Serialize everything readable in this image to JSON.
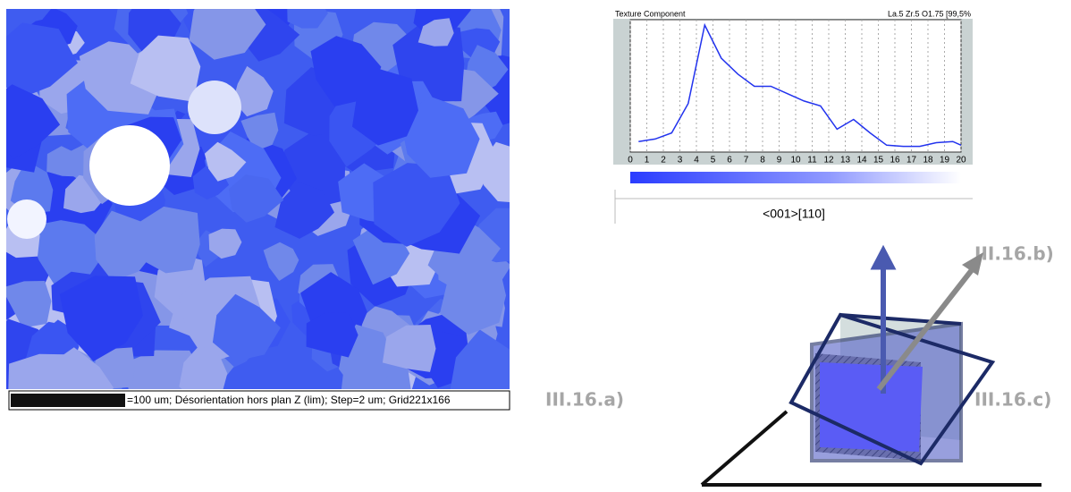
{
  "map": {
    "caption": "=100 um; Désorientation hors plan Z (lim); Step=2 um; Grid221x166"
  },
  "chart_data": {
    "type": "line",
    "title": "Texture Component",
    "subtitle": "La.5 Zr.5 O1.75 [99,5%",
    "x_label": "<001>[110]",
    "x": [
      0.5,
      1.5,
      2.5,
      3.5,
      4.5,
      5.5,
      6.5,
      7.5,
      8.5,
      9.5,
      10.5,
      11.5,
      12.5,
      13.5,
      14.5,
      15.5,
      16.5,
      17.5,
      18.5,
      19.5,
      20
    ],
    "series": [
      {
        "name": "<001>[110]",
        "color": "#2233ee",
        "values": [
          5,
          7,
          12,
          36,
          100,
          73,
          60,
          50,
          50,
          44,
          38,
          34,
          15,
          23,
          12,
          2,
          1,
          1,
          4,
          5,
          2
        ]
      }
    ],
    "xlim": [
      0,
      20
    ],
    "ylim": [
      0,
      100
    ],
    "xticks": [
      0,
      1,
      2,
      3,
      4,
      5,
      6,
      7,
      8,
      9,
      10,
      11,
      12,
      13,
      14,
      15,
      16,
      17,
      18,
      19,
      20
    ],
    "grid": true
  },
  "labels": {
    "a": "III.16.a)",
    "b": "III.16.b)",
    "c": "III.16.c)"
  }
}
